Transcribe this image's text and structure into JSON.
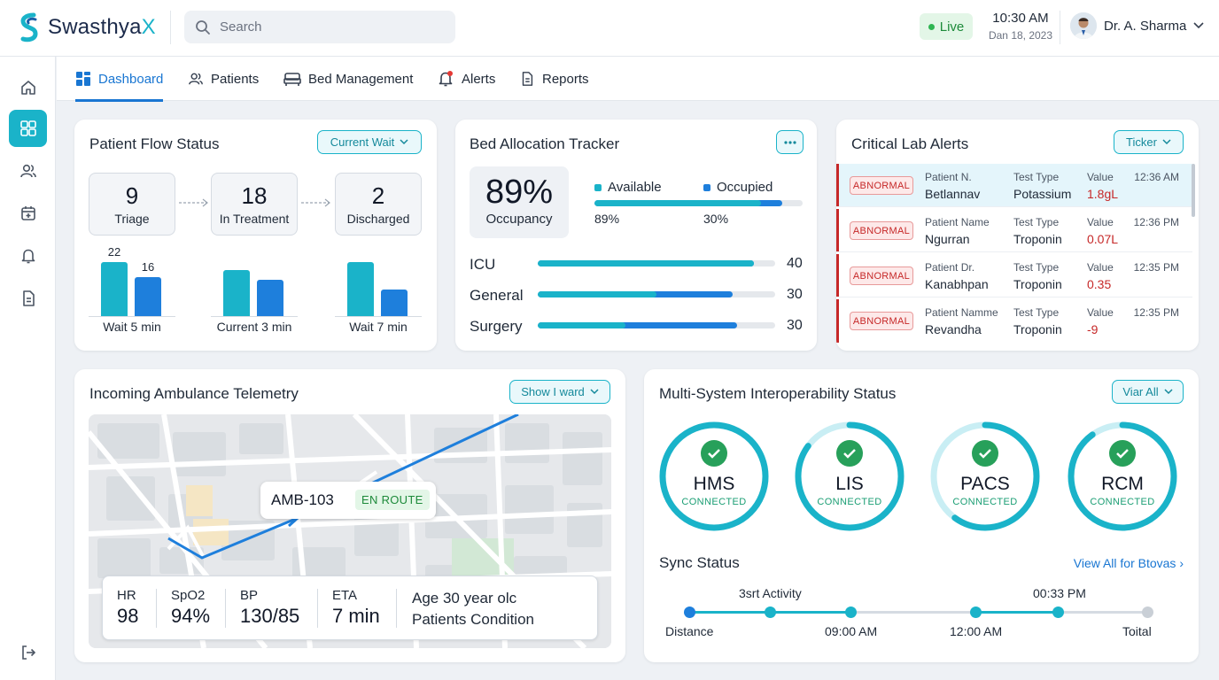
{
  "app": {
    "name_prefix": "Swasthya",
    "name_suffix": "X"
  },
  "header": {
    "search_placeholder": "Search",
    "live_label": "Live",
    "time": "10:30 AM",
    "date": "Dan 18, 2023",
    "user_name": "Dr. A. Sharma"
  },
  "tabs": [
    {
      "label": "Dashboard",
      "icon": "grid-icon",
      "active": true
    },
    {
      "label": "Patients",
      "icon": "users-icon"
    },
    {
      "label": "Bed Management",
      "icon": "bed-icon"
    },
    {
      "label": "Alerts",
      "icon": "bell-icon"
    },
    {
      "label": "Reports",
      "icon": "document-icon"
    }
  ],
  "patient_flow": {
    "title": "Patient Flow Status",
    "filter_label": "Current Wait",
    "stages": [
      {
        "count": "9",
        "label": "Triage"
      },
      {
        "count": "18",
        "label": "In Treatment"
      },
      {
        "count": "2",
        "label": "Discharged"
      }
    ],
    "charts": [
      {
        "label": "Wait 5 min",
        "values": [
          22,
          16
        ],
        "value_labels": [
          "22",
          "16"
        ]
      },
      {
        "label": "Current 3 min",
        "values": [
          19,
          15
        ],
        "value_labels": [
          "",
          ""
        ]
      },
      {
        "label": "Wait 7 min",
        "values": [
          22,
          11
        ],
        "value_labels": [
          "",
          ""
        ]
      }
    ]
  },
  "bed_allocation": {
    "title": "Bed Allocation Tracker",
    "occupancy_value": "89%",
    "occupancy_label": "Occupancy",
    "legend": [
      {
        "label": "Available",
        "pct": "89%",
        "color": "#1ab3c9"
      },
      {
        "label": "Occupied",
        "pct": "30%",
        "color": "#1e7fdc"
      }
    ],
    "summary_fill": {
      "teal": 0.8,
      "blue": 0.1
    },
    "rows": [
      {
        "label": "ICU",
        "value": "40",
        "teal": 0.91,
        "blue": 0.0
      },
      {
        "label": "General",
        "value": "30",
        "teal": 0.5,
        "blue": 0.32
      },
      {
        "label": "Surgery",
        "value": "30",
        "teal": 0.37,
        "blue": 0.47
      }
    ]
  },
  "lab_alerts": {
    "title": "Critical Lab Alerts",
    "filter_label": "Ticker",
    "badge": "ABNORMAL",
    "rows": [
      {
        "patient_key": "Patient N.",
        "patient": "Betlannav",
        "test_key": "Test Type",
        "test": "Potassium",
        "value_key": "Value",
        "value": "1.8gL",
        "time": "12:36 AM"
      },
      {
        "patient_key": "Patient Name",
        "patient": "Ngurran",
        "test_key": "Test Type",
        "test": "Troponin",
        "value_key": "Value",
        "value": "0.07L",
        "time": "12:36 PM"
      },
      {
        "patient_key": "Patient Dr.",
        "patient": "Kanabhpan",
        "test_key": "Test Type",
        "test": "Troponin",
        "value_key": "Value",
        "value": "0.35",
        "time": "12:35 PM"
      },
      {
        "patient_key": "Patient Namme",
        "patient": "Revandha",
        "test_key": "Test Type",
        "test": "Troponin",
        "value_key": "Value",
        "value": "-9",
        "time": "12:35 PM"
      }
    ]
  },
  "ambulance": {
    "title": "Incoming Ambulance Telemetry",
    "filter_label": "Show I ward",
    "unit_id": "AMB-103",
    "status": "EN ROUTE",
    "vitals": [
      {
        "key": "HR",
        "value": "98"
      },
      {
        "key": "SpO2",
        "value": "94%"
      },
      {
        "key": "BP",
        "value": "130/85"
      },
      {
        "key": "ETA",
        "value": "7 min"
      }
    ],
    "patient_line1": "Age 30 year olc",
    "patient_line2": "Patients Condition"
  },
  "interop": {
    "title": "Multi-System Interoperability Status",
    "filter_label": "Viar All",
    "systems": [
      {
        "name": "HMS",
        "status": "CONNECTED",
        "level": 1.0
      },
      {
        "name": "LIS",
        "status": "CONNECTED",
        "level": 0.85
      },
      {
        "name": "PACS",
        "status": "CONNECTED",
        "level": 0.6
      },
      {
        "name": "RCM",
        "status": "CONNECTED",
        "level": 0.9
      }
    ],
    "sync_title": "Sync Status",
    "sync_link": "View All for Btovas",
    "timeline_top": [
      "3srt Activity",
      "00:33 PM"
    ],
    "timeline_bottom": [
      "Distance",
      "09:00 AM",
      "12:00 AM",
      "Toital"
    ]
  }
}
